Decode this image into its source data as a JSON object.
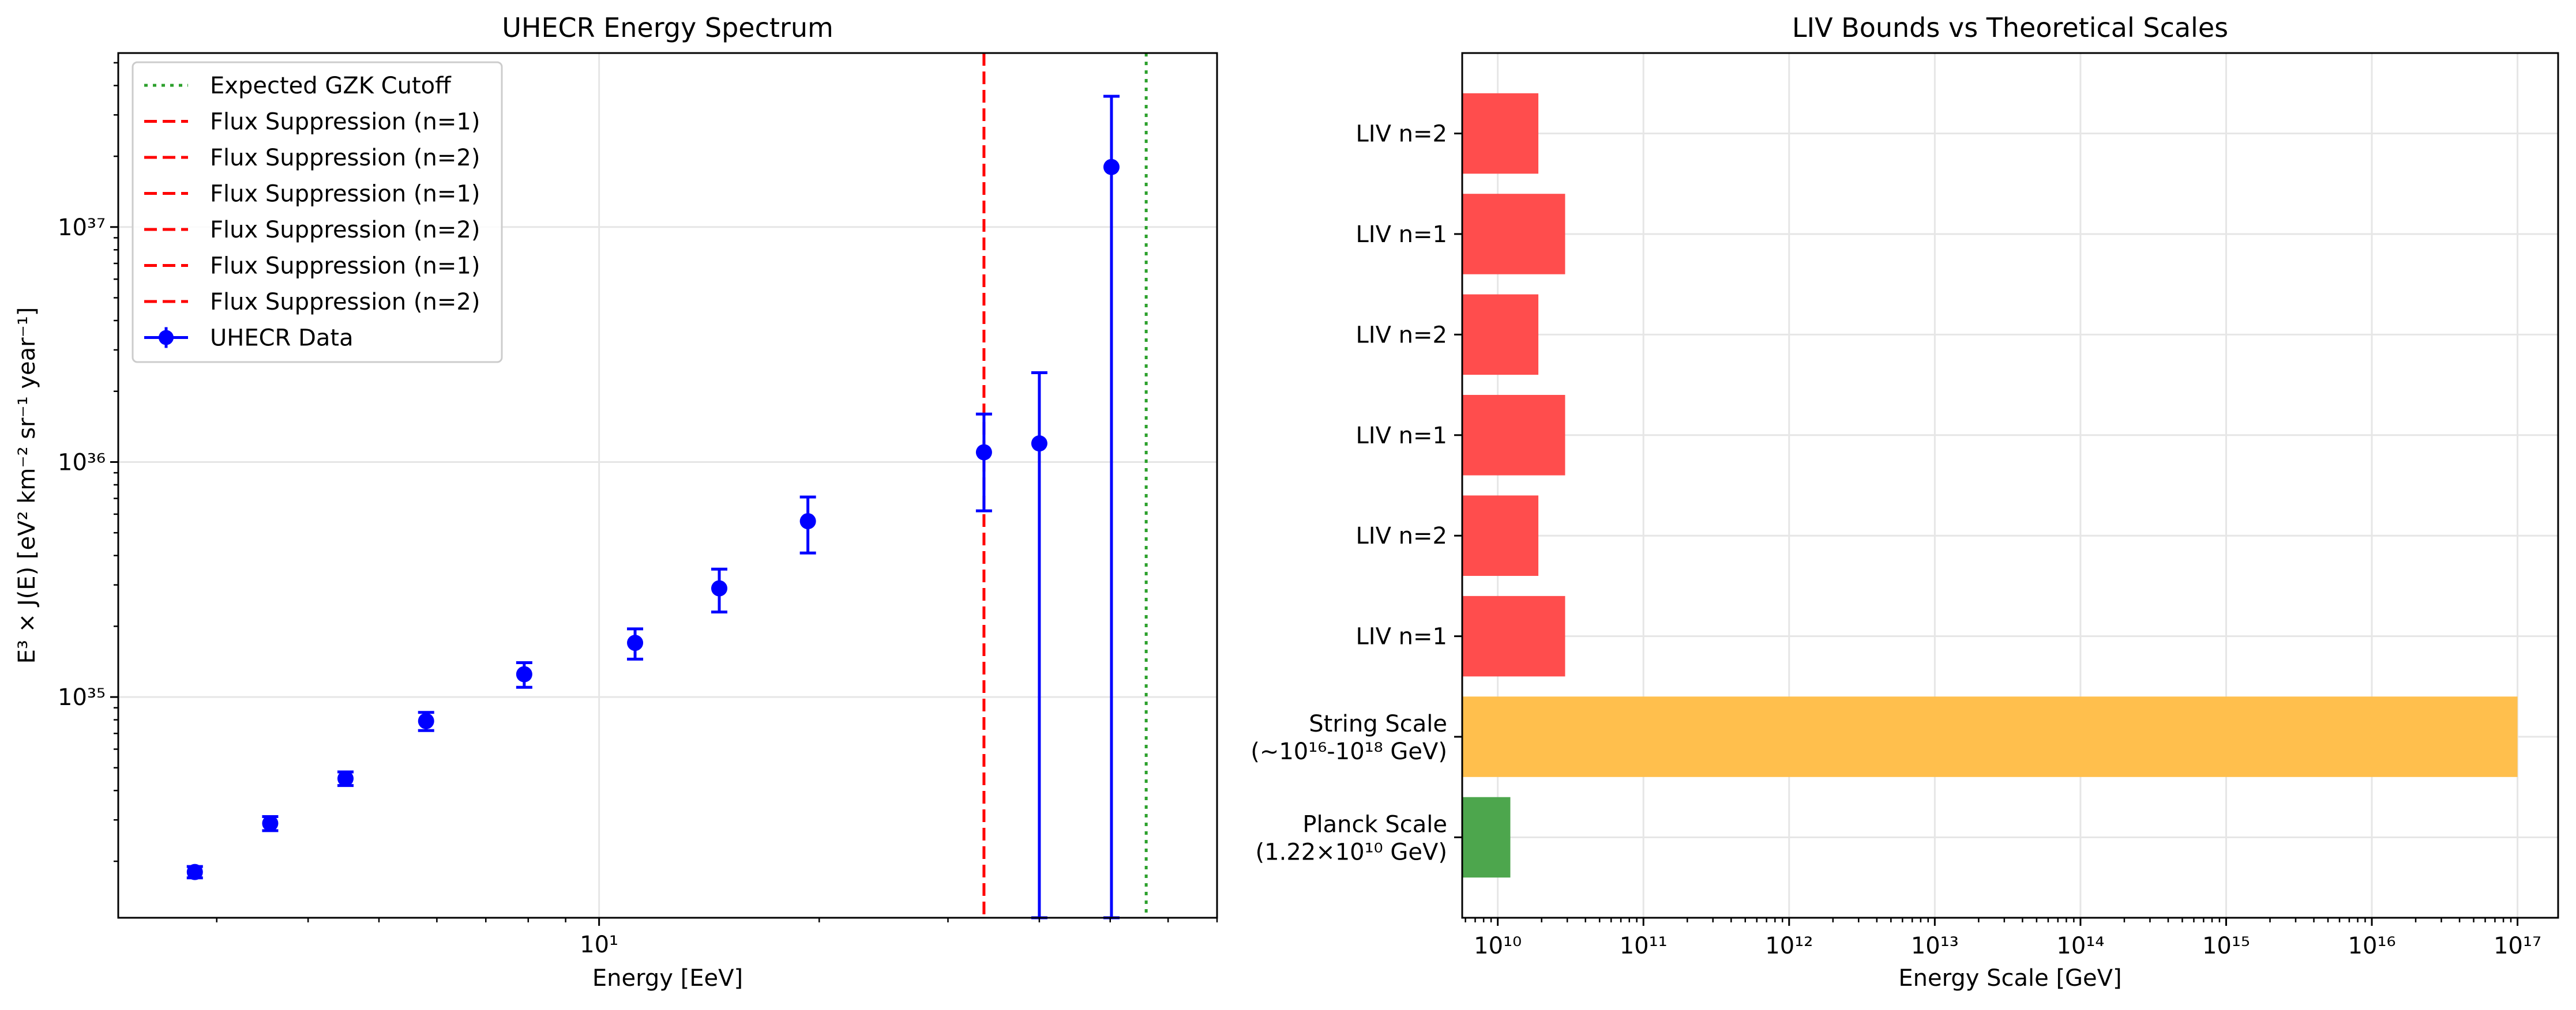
{
  "chart_data": [
    {
      "type": "scatter",
      "title": "UHECR Energy Spectrum",
      "xlabel": "Energy [EeV]",
      "ylabel": "E³ × J(E) [eV² km⁻² sr⁻¹ year⁻¹]",
      "xscale": "log",
      "yscale": "log",
      "xlim": [
        2.2,
        70
      ],
      "ylim": [
        1.15e+34,
        5.5e+37
      ],
      "x_tick_labels": [
        "10¹"
      ],
      "y_tick_labels": [
        "10³⁵",
        "10³⁶",
        "10³⁷"
      ],
      "grid": true,
      "legend_position": "upper left",
      "series": [
        {
          "name": "UHECR Data",
          "color": "#0000ff",
          "marker": "circle",
          "x": [
            2.8,
            3.55,
            4.5,
            5.8,
            7.9,
            11.2,
            14.6,
            19.3,
            33.6,
            40.0,
            50.2
          ],
          "y": [
            1.8e+34,
            2.9e+34,
            4.5e+34,
            7.9e+34,
            1.25e+35,
            1.7e+35,
            2.9e+35,
            5.6e+35,
            1.1e+36,
            1.2e+36,
            1.8e+37
          ],
          "y_low": [
            1.7e+34,
            2.7e+34,
            4.2e+34,
            7.2e+34,
            1.1e+35,
            1.45e+35,
            2.3e+35,
            4.1e+35,
            6.2e+35,
            1.15e+34,
            1.15e+34
          ],
          "y_high": [
            1.9e+34,
            3.1e+34,
            4.8e+34,
            8.6e+34,
            1.4e+35,
            1.95e+35,
            3.5e+35,
            7.1e+35,
            1.6e+36,
            2.4e+36,
            3.6e+37
          ]
        }
      ],
      "vlines": [
        {
          "name": "Expected GZK Cutoff",
          "x": 56.0,
          "color": "#2ca02c",
          "style": "dotted"
        },
        {
          "name": "Flux Suppression (n=1)",
          "x": 33.6,
          "color": "#ff0000",
          "style": "dashed"
        },
        {
          "name": "Flux Suppression (n=2)",
          "x": 33.6,
          "color": "#ff0000",
          "style": "dashed"
        },
        {
          "name": "Flux Suppression (n=1)",
          "x": 33.6,
          "color": "#ff0000",
          "style": "dashed"
        },
        {
          "name": "Flux Suppression (n=2)",
          "x": 33.6,
          "color": "#ff0000",
          "style": "dashed"
        },
        {
          "name": "Flux Suppression (n=1)",
          "x": 33.6,
          "color": "#ff0000",
          "style": "dashed"
        },
        {
          "name": "Flux Suppression (n=2)",
          "x": 33.6,
          "color": "#ff0000",
          "style": "dashed"
        }
      ],
      "legend": [
        {
          "label": "Expected GZK Cutoff",
          "color": "#2ca02c",
          "style": "dotted"
        },
        {
          "label": "Flux Suppression (n=1)",
          "color": "#ff0000",
          "style": "dashed"
        },
        {
          "label": "Flux Suppression (n=2)",
          "color": "#ff0000",
          "style": "dashed"
        },
        {
          "label": "Flux Suppression (n=1)",
          "color": "#ff0000",
          "style": "dashed"
        },
        {
          "label": "Flux Suppression (n=2)",
          "color": "#ff0000",
          "style": "dashed"
        },
        {
          "label": "Flux Suppression (n=1)",
          "color": "#ff0000",
          "style": "dashed"
        },
        {
          "label": "Flux Suppression (n=2)",
          "color": "#ff0000",
          "style": "dashed"
        },
        {
          "label": "UHECR Data",
          "color": "#0000ff",
          "style": "errorbar"
        }
      ]
    },
    {
      "type": "bar",
      "orientation": "horizontal",
      "title": "LIV Bounds vs Theoretical Scales",
      "xlabel": "Energy Scale [GeV]",
      "ylabel": "",
      "xscale": "log",
      "xlim": [
        5700000000.0,
        1.9e+17
      ],
      "x_tick_labels": [
        "10¹⁰",
        "10¹¹",
        "10¹²",
        "10¹³",
        "10¹⁴",
        "10¹⁵",
        "10¹⁶",
        "10¹⁷"
      ],
      "grid": true,
      "categories": [
        [
          "Planck Scale",
          "(1.22×10¹⁰ GeV)"
        ],
        [
          "String Scale",
          "(~10¹⁶-10¹⁸ GeV)"
        ],
        [
          "LIV n=1"
        ],
        [
          "LIV n=2"
        ],
        [
          "LIV n=1"
        ],
        [
          "LIV n=2"
        ],
        [
          "LIV n=1"
        ],
        [
          "LIV n=2"
        ]
      ],
      "values": [
        12200000000.0,
        1e+17,
        29000000000.0,
        19000000000.0,
        29000000000.0,
        19000000000.0,
        29000000000.0,
        19000000000.0
      ],
      "colors": [
        "#4da64d",
        "#ffbf4d",
        "#ff4d4d",
        "#ff4d4d",
        "#ff4d4d",
        "#ff4d4d",
        "#ff4d4d",
        "#ff4d4d"
      ]
    }
  ]
}
